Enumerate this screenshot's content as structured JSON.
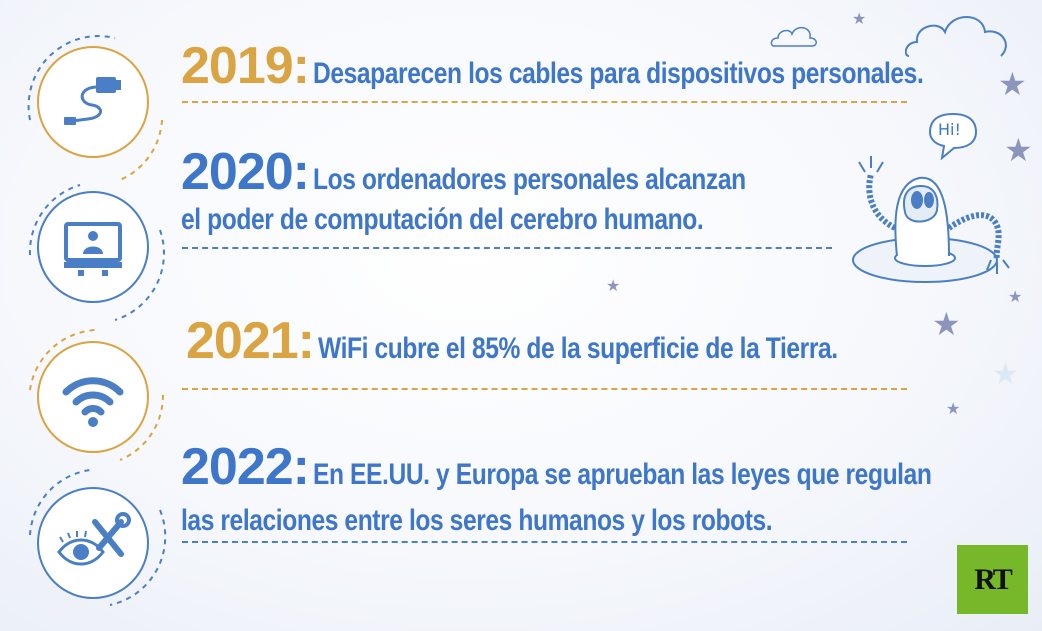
{
  "entries": [
    {
      "year": "2019:",
      "line1": "Desaparecen los cables para dispositivos personales.",
      "line2": "",
      "icon": "cable-icon"
    },
    {
      "year": "2020:",
      "line1": "Los ordenadores personales alcanzan",
      "line2": "el poder de computación del cerebro humano.",
      "icon": "computer-icon"
    },
    {
      "year": "2021:",
      "line1": "WiFi cubre el 85% de la superficie de la Tierra.",
      "line2": "",
      "icon": "wifi-icon"
    },
    {
      "year": "2022:",
      "line1": "En EE.UU. y Europa se aprueban las leyes que regulan",
      "line2": "las relaciones entre los seres humanos y los robots.",
      "icon": "eye-tools-icon"
    }
  ],
  "robot_speech": "Hi!",
  "logo": "RT",
  "colors": {
    "gold": "#d9a441",
    "blue": "#3e76c9",
    "logo_green": "#76b82a",
    "star": "#8d95bd"
  }
}
